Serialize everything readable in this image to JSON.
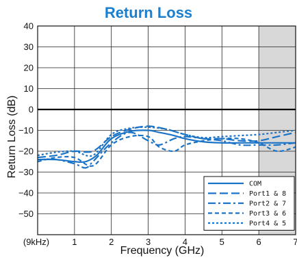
{
  "chart_data": {
    "type": "line",
    "title": "Return Loss",
    "xlabel": "Frequency (GHz)",
    "ylabel": "Return Loss (dB)",
    "xlim": [
      0,
      7
    ],
    "ylim": [
      -60,
      40
    ],
    "x_ticks": [
      {
        "value": 0,
        "label": "(9kHz)"
      },
      {
        "value": 1,
        "label": "1"
      },
      {
        "value": 2,
        "label": "2"
      },
      {
        "value": 3,
        "label": "3"
      },
      {
        "value": 4,
        "label": "4"
      },
      {
        "value": 5,
        "label": "5"
      },
      {
        "value": 6,
        "label": "6"
      },
      {
        "value": 7,
        "label": "7"
      }
    ],
    "y_ticks": [
      40,
      30,
      20,
      10,
      0,
      -10,
      -20,
      -30,
      -40,
      -50
    ],
    "grid": true,
    "shaded_region": {
      "x_from": 6,
      "x_to": 7
    },
    "legend_position": "bottom-right",
    "colors": {
      "title": "#1a7fcf",
      "series": "#1a73c6",
      "grid": "#222222",
      "zero_line": "#000000",
      "shade": "#d8d8d8"
    },
    "series": [
      {
        "name": "COM",
        "dash": "solid",
        "x": [
          0,
          0.5,
          1,
          1.3,
          1.6,
          2,
          2.5,
          3,
          3.3,
          3.7,
          4,
          4.5,
          5,
          5.5,
          6,
          6.5,
          7
        ],
        "y": [
          -24,
          -24,
          -25,
          -25,
          -22,
          -14,
          -10.5,
          -10,
          -11,
          -12.5,
          -14,
          -15.5,
          -16,
          -16,
          -16,
          -16,
          -16
        ]
      },
      {
        "name": "Port1 & 8",
        "dash": "long-dash",
        "x": [
          0,
          0.5,
          1,
          1.5,
          2,
          2.5,
          3,
          3.5,
          4,
          4.5,
          5,
          5.5,
          6,
          6.5,
          7
        ],
        "y": [
          -23,
          -22,
          -20,
          -20,
          -13,
          -9.5,
          -8,
          -9.5,
          -12,
          -14,
          -14,
          -15,
          -15,
          -13,
          -11
        ]
      },
      {
        "name": "Port2 & 7",
        "dash": "dash-dot",
        "x": [
          0,
          0.5,
          1,
          1.3,
          1.5,
          2,
          2.5,
          3,
          3.3,
          3.7,
          4,
          4.5,
          5,
          5.5,
          6,
          6.5,
          7
        ],
        "y": [
          -24,
          -24,
          -26,
          -28,
          -25,
          -16,
          -11,
          -15,
          -17,
          -14,
          -13,
          -14,
          -15,
          -17,
          -17,
          -17,
          -16
        ]
      },
      {
        "name": "Port3 & 6",
        "dash": "short-dash",
        "x": [
          0,
          0.5,
          1,
          1.5,
          2,
          2.5,
          3,
          3.3,
          3.7,
          4,
          4.5,
          5,
          5.5,
          6,
          6.5,
          7
        ],
        "y": [
          -25,
          -23,
          -23,
          -27,
          -17,
          -13,
          -13,
          -18,
          -20,
          -17,
          -15,
          -14,
          -14,
          -16,
          -20,
          -18
        ]
      },
      {
        "name": "Port4 & 5",
        "dash": "dotted",
        "x": [
          0,
          0.5,
          1,
          1.5,
          2,
          2.5,
          3,
          3.5,
          4,
          4.5,
          5,
          5.5,
          6,
          6.5,
          7
        ],
        "y": [
          -22,
          -20.5,
          -20,
          -22,
          -12,
          -9,
          -8.5,
          -9.5,
          -12,
          -13.5,
          -13,
          -12.5,
          -12,
          -11,
          -10
        ]
      }
    ]
  }
}
